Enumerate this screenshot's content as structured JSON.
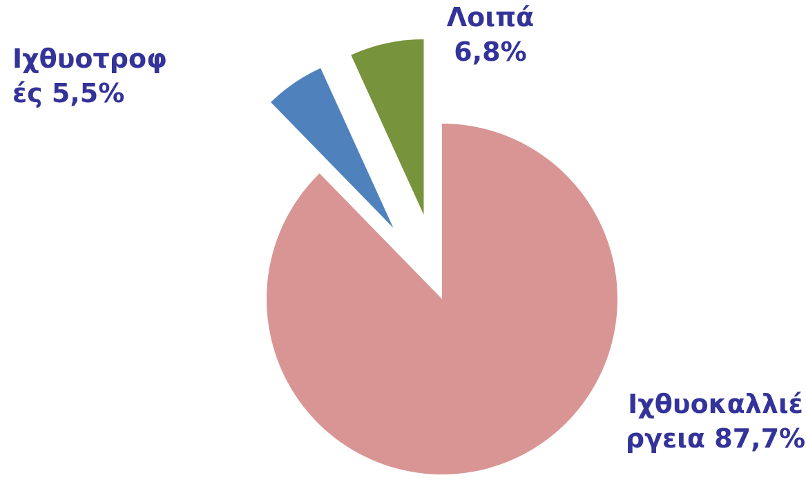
{
  "chart_data": {
    "type": "pie",
    "categories": [
      "Ιχθυοκαλλιέργεια",
      "Ιχθυοτροφές",
      "Λοιπά"
    ],
    "values": [
      87.7,
      5.5,
      6.8
    ],
    "value_labels": [
      "87,7%",
      "5,5%",
      "6,8%"
    ],
    "colors": [
      "#d99594",
      "#4f81bd",
      "#77933c"
    ],
    "exploded": [
      false,
      true,
      true
    ]
  }
}
